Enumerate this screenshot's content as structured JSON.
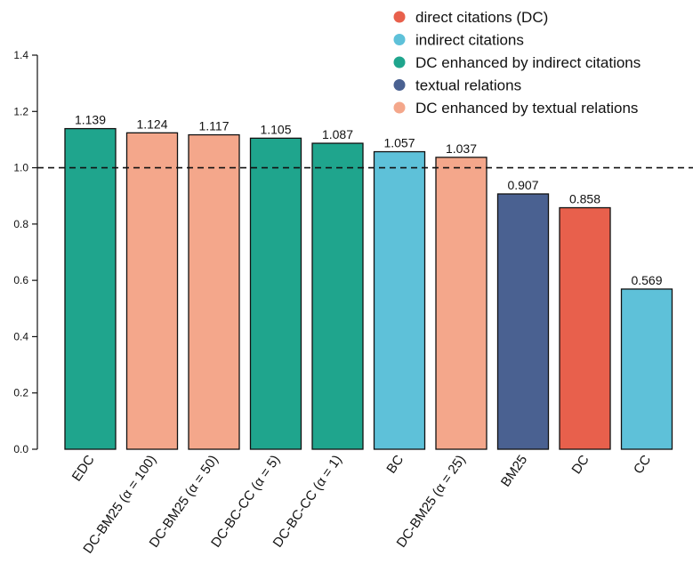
{
  "chart_data": {
    "type": "bar",
    "categories": [
      "EDC",
      "DC-BM25 (α = 100)",
      "DC-BM25 (α = 50)",
      "DC-BC-CC (α = 5)",
      "DC-BC-CC (α = 1)",
      "BC",
      "DC-BM25 (α = 25)",
      "BM25",
      "DC",
      "CC"
    ],
    "values": [
      1.139,
      1.124,
      1.117,
      1.105,
      1.087,
      1.057,
      1.037,
      0.907,
      0.858,
      0.569
    ],
    "value_labels": [
      "1.139",
      "1.124",
      "1.117",
      "1.105",
      "1.087",
      "1.057",
      "1.037",
      "0.907",
      "0.858",
      "0.569"
    ],
    "groups": [
      2,
      4,
      4,
      2,
      2,
      1,
      4,
      3,
      0,
      1
    ],
    "legend": [
      {
        "label": "direct citations (DC)",
        "color": "#e8604c"
      },
      {
        "label": "indirect citations",
        "color": "#5ec1d9"
      },
      {
        "label": "DC enhanced by indirect citations",
        "color": "#1fa58d"
      },
      {
        "label": "textual relations",
        "color": "#4a6191"
      },
      {
        "label": "DC enhanced by textual relations",
        "color": "#f4a78b"
      }
    ],
    "legend_position": "top-right",
    "ylim": [
      0,
      1.4
    ],
    "yticks": [
      "0.0",
      "0.2",
      "0.4",
      "0.6",
      "0.8",
      "1.0",
      "1.2",
      "1.4"
    ],
    "reference_line": 1.0,
    "grid": false,
    "title": "",
    "xlabel": "",
    "ylabel": ""
  }
}
